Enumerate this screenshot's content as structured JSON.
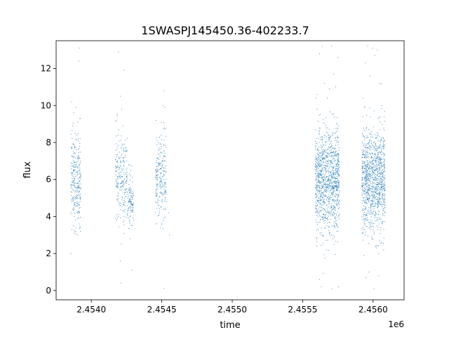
{
  "chart_data": {
    "type": "scatter",
    "title": "1SWASPJ145450.36-402233.7",
    "xlabel": "time",
    "ylabel": "flux",
    "x_offset_label": "1e6",
    "xlim": [
      2453750,
      2456220
    ],
    "ylim": [
      -0.5,
      13.5
    ],
    "xticks": [
      2.454,
      2.4545,
      2.455,
      2.4555,
      2.456
    ],
    "yticks": [
      0,
      2,
      4,
      6,
      8,
      10,
      12
    ],
    "grid": false,
    "legend": "none",
    "color": "#1f77b4",
    "series": [
      {
        "segments": [
          {
            "t0": 2453855,
            "t1": 2453925,
            "y": [
              [
                2453860,
                10.2
              ],
              [
                2453868,
                8.9
              ],
              [
                2453875,
                9.6
              ],
              [
                2453882,
                7.8
              ],
              [
                2453890,
                9.9
              ],
              [
                2453897,
                8.4
              ],
              [
                2453905,
                9.1
              ],
              [
                2453912,
                12.4
              ],
              [
                2453915,
                13.1
              ],
              [
                2453920,
                9.3
              ],
              [
                2453862,
                3.3
              ],
              [
                2453872,
                3.5
              ],
              [
                2453880,
                3.1
              ],
              [
                2453890,
                3.4
              ],
              [
                2453903,
                3.0
              ],
              [
                2453915,
                3.6
              ],
              [
                2453922,
                3.2
              ]
            ]
          },
          {
            "t0": 2454170,
            "t1": 2454300,
            "y": [
              [
                2454178,
                9.2
              ],
              [
                2454190,
                8.4
              ],
              [
                2454205,
                10.5
              ],
              [
                2454215,
                9.8
              ],
              [
                2454225,
                8.9
              ],
              [
                2454240,
                7.2
              ],
              [
                2454265,
                6.8
              ],
              [
                2454280,
                6.5
              ],
              [
                2454192,
                12.9
              ],
              [
                2454230,
                11.9
              ],
              [
                2454185,
                3.9
              ],
              [
                2454205,
                1.6
              ],
              [
                2454210,
                0.4
              ],
              [
                2454212,
                2.5
              ],
              [
                2454230,
                4.0
              ],
              [
                2454285,
                3.5
              ],
              [
                2454290,
                1.1
              ],
              [
                2454270,
                3.8
              ]
            ]
          },
          {
            "t0": 2454455,
            "t1": 2454530,
            "y": [
              [
                2454460,
                9.2
              ],
              [
                2454468,
                8.1
              ],
              [
                2454480,
                7.6
              ],
              [
                2454495,
                8.4
              ],
              [
                2454510,
                10.0
              ],
              [
                2454515,
                10.8
              ],
              [
                2454522,
                9.9
              ],
              [
                2454535,
                4.8
              ],
              [
                2454548,
                4.2
              ],
              [
                2454555,
                3.0
              ],
              [
                2454462,
                3.6
              ],
              [
                2454478,
                4.6
              ],
              [
                2454490,
                3.4
              ],
              [
                2454512,
                3.8
              ],
              [
                2454515,
                0.1
              ],
              [
                2454525,
                4.4
              ]
            ]
          },
          {
            "t0": 2455590,
            "t1": 2455760,
            "y": [
              [
                2455600,
                9.8
              ],
              [
                2455620,
                12.8
              ],
              [
                2455640,
                13.2
              ],
              [
                2455655,
                11.2
              ],
              [
                2455675,
                10.4
              ],
              [
                2455690,
                10.9
              ],
              [
                2455705,
                13.2
              ],
              [
                2455720,
                11.7
              ],
              [
                2455735,
                11.0
              ],
              [
                2455750,
                12.6
              ],
              [
                2455600,
                2.4
              ],
              [
                2455620,
                0.6
              ],
              [
                2455632,
                0.2
              ],
              [
                2455650,
                3.9
              ],
              [
                2455672,
                3.5
              ],
              [
                2455690,
                3.1
              ],
              [
                2455710,
                0.1
              ],
              [
                2455725,
                2.9
              ],
              [
                2455742,
                3.2
              ],
              [
                2455755,
                0.2
              ]
            ]
          },
          {
            "t0": 2455920,
            "t1": 2456085,
            "y": [
              [
                2455930,
                10.4
              ],
              [
                2455945,
                12.3
              ],
              [
                2455962,
                13.2
              ],
              [
                2455980,
                11.6
              ],
              [
                2455996,
                13.1
              ],
              [
                2456012,
                12.7
              ],
              [
                2456030,
                13.0
              ],
              [
                2456048,
                11.2
              ],
              [
                2456062,
                10.0
              ],
              [
                2456078,
                9.4
              ],
              [
                2455935,
                1.9
              ],
              [
                2455950,
                0.7
              ],
              [
                2455970,
                1.0
              ],
              [
                2455990,
                2.8
              ],
              [
                2456005,
                0.1
              ],
              [
                2456022,
                2.3
              ],
              [
                2456040,
                0.8
              ],
              [
                2456060,
                2.6
              ],
              [
                2456075,
                2.2
              ]
            ]
          }
        ]
      }
    ]
  }
}
